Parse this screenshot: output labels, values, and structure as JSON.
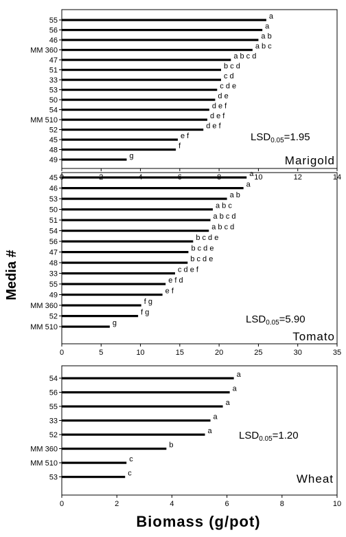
{
  "y_axis_title": "Media #",
  "x_axis_title": "Biomass (g/pot)",
  "chart_data": [
    {
      "type": "bar",
      "orientation": "horizontal",
      "panel_label": "Marigold",
      "lsd_label": {
        "prefix": "LSD",
        "subscript": "0.05",
        "value": "=1.95"
      },
      "categories": [
        "55",
        "56",
        "46",
        "MM 360",
        "47",
        "51",
        "33",
        "53",
        "50",
        "54",
        "MM 510",
        "52",
        "45",
        "48",
        "49"
      ],
      "values": [
        10.4,
        10.2,
        10.0,
        9.7,
        8.6,
        8.1,
        8.1,
        7.9,
        7.8,
        7.5,
        7.4,
        7.2,
        5.9,
        5.8,
        3.3
      ],
      "letters": [
        "a",
        "a",
        "a b",
        "a b c",
        "a b c d",
        "b c d",
        "c d",
        "c d e",
        "d e",
        "d e f",
        "d e f",
        "d e f",
        "e f",
        "f",
        "g"
      ],
      "xlim": [
        0,
        14
      ],
      "xticks": [
        "0",
        "2",
        "4",
        "6",
        "8",
        "10",
        "12",
        "14"
      ],
      "grid": false
    },
    {
      "type": "bar",
      "orientation": "horizontal",
      "panel_label": "Tomato",
      "lsd_label": {
        "prefix": "LSD",
        "subscript": "0.05",
        "value": "=5.90"
      },
      "categories": [
        "45",
        "46",
        "53",
        "50",
        "51",
        "54",
        "56",
        "47",
        "48",
        "33",
        "55",
        "49",
        "MM 360",
        "52",
        "MM 510"
      ],
      "values": [
        23.5,
        23.1,
        21.0,
        19.2,
        18.9,
        18.7,
        16.7,
        16.1,
        16.0,
        14.4,
        13.2,
        12.8,
        10.1,
        9.7,
        6.1
      ],
      "letters": [
        "a",
        "a",
        "a b",
        "a b c",
        "a b c d",
        "a b c d",
        "b c d e",
        "b c d e",
        "b c d e",
        "c d e f",
        "e f d",
        "e f",
        "f g",
        "f g",
        "g"
      ],
      "xlim": [
        0,
        35
      ],
      "xticks": [
        "0",
        "5",
        "10",
        "15",
        "20",
        "25",
        "30",
        "35"
      ],
      "grid": false
    },
    {
      "type": "bar",
      "orientation": "horizontal",
      "panel_label": "Wheat",
      "lsd_label": {
        "prefix": "LSD",
        "subscript": "0.05",
        "value": "=1.20"
      },
      "categories": [
        "54",
        "56",
        "55",
        "33",
        "52",
        "MM 360",
        "MM 510",
        "53"
      ],
      "values": [
        6.25,
        6.1,
        5.85,
        5.4,
        5.2,
        3.8,
        2.35,
        2.3
      ],
      "letters": [
        "a",
        "a",
        "a",
        "a",
        "a",
        "b",
        "c",
        "c"
      ],
      "xlim": [
        0,
        10
      ],
      "xticks": [
        "0",
        "2",
        "4",
        "6",
        "8",
        "10"
      ],
      "grid": false
    }
  ]
}
